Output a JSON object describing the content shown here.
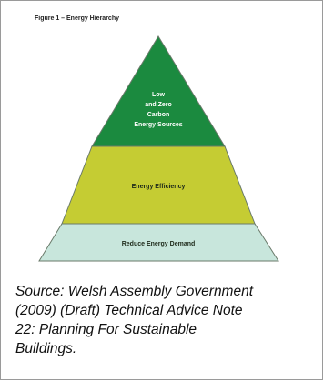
{
  "figure_label": "Figure 1 – Energy Hierarchy",
  "pyramid": {
    "top": {
      "lines": [
        "Low",
        "and Zero",
        "Carbon",
        "Energy Sources"
      ],
      "color": "#1b8a3f"
    },
    "middle": {
      "label": "Energy Efficiency",
      "color": "#c5cc33"
    },
    "base": {
      "label": "Reduce Energy Demand",
      "color": "#c8e6dc"
    },
    "outline_color": "#6a7a6a"
  },
  "caption": {
    "lines": [
      "Source: Welsh Assembly Government",
      "(2009) (Draft) Technical Advice Note",
      "22: Planning For Sustainable",
      "Buildings."
    ]
  }
}
